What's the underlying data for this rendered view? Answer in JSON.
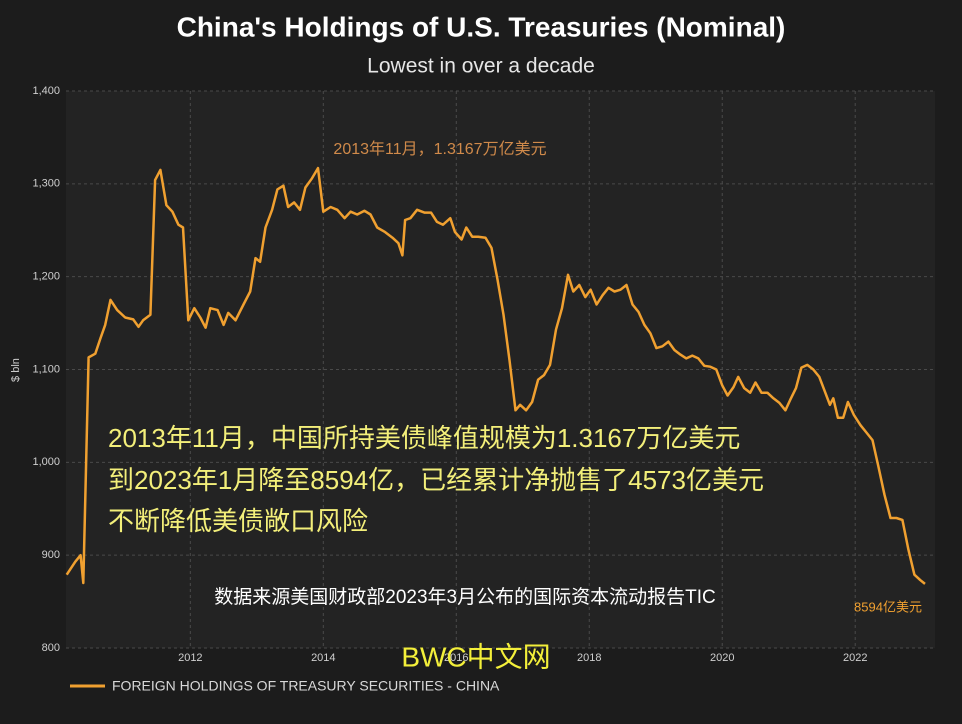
{
  "chart_data": {
    "type": "line",
    "title": "China's Holdings of U.S. Treasuries (Nominal)",
    "subtitle": "Lowest in over a decade",
    "y_label": "$ bln",
    "x": [
      2010.14,
      2010.27,
      2010.35,
      2010.39,
      2010.47,
      2010.57,
      2010.65,
      2010.72,
      2010.8,
      2010.9,
      2011.02,
      2011.14,
      2011.22,
      2011.29,
      2011.4,
      2011.47,
      2011.55,
      2011.64,
      2011.73,
      2011.82,
      2011.89,
      2011.97,
      2012.06,
      2012.15,
      2012.23,
      2012.3,
      2012.41,
      2012.5,
      2012.57,
      2012.68,
      2012.8,
      2012.9,
      2012.98,
      2013.05,
      2013.13,
      2013.23,
      2013.31,
      2013.4,
      2013.47,
      2013.56,
      2013.65,
      2013.73,
      2013.83,
      2013.92,
      2014.0,
      2014.11,
      2014.21,
      2014.32,
      2014.41,
      2014.51,
      2014.62,
      2014.71,
      2014.81,
      2014.93,
      2015.04,
      2015.13,
      2015.19,
      2015.23,
      2015.31,
      2015.41,
      2015.52,
      2015.62,
      2015.71,
      2015.8,
      2015.91,
      2015.98,
      2016.08,
      2016.15,
      2016.24,
      2016.33,
      2016.44,
      2016.53,
      2016.62,
      2016.71,
      2016.8,
      2016.89,
      2016.96,
      2017.05,
      2017.14,
      2017.23,
      2017.32,
      2017.41,
      2017.5,
      2017.59,
      2017.68,
      2017.76,
      2017.85,
      2017.94,
      2018.02,
      2018.11,
      2018.2,
      2018.29,
      2018.38,
      2018.47,
      2018.56,
      2018.65,
      2018.74,
      2018.83,
      2018.92,
      2019.01,
      2019.1,
      2019.19,
      2019.28,
      2019.37,
      2019.46,
      2019.55,
      2019.64,
      2019.73,
      2019.82,
      2019.91,
      2020.0,
      2020.08,
      2020.17,
      2020.24,
      2020.33,
      2020.42,
      2020.5,
      2020.59,
      2020.68,
      2020.77,
      2020.86,
      2020.95,
      2021.02,
      2021.11,
      2021.19,
      2021.28,
      2021.37,
      2021.46,
      2021.55,
      2021.62,
      2021.67,
      2021.74,
      2021.82,
      2021.89,
      2021.98,
      2022.08,
      2022.17,
      2022.26,
      2022.35,
      2022.44,
      2022.53,
      2022.62,
      2022.71,
      2022.8,
      2022.89,
      2022.98,
      2023.05
    ],
    "series": [
      {
        "name": "FOREIGN HOLDINGS OF TREASURY SECURITIES - CHINA",
        "color": "#f0a030",
        "values": [
          879,
          893,
          900,
          870,
          1113,
          1117,
          1134,
          1148,
          1175,
          1164,
          1156,
          1154,
          1146,
          1153,
          1159,
          1304,
          1315,
          1277,
          1270,
          1256,
          1253,
          1153,
          1166,
          1156,
          1145,
          1166,
          1164,
          1148,
          1161,
          1153,
          1170,
          1184,
          1220,
          1216,
          1253,
          1272,
          1294,
          1298,
          1275,
          1280,
          1272,
          1296,
          1306,
          1317,
          1270,
          1275,
          1272,
          1263,
          1270,
          1267,
          1271,
          1267,
          1253,
          1248,
          1242,
          1236,
          1223,
          1261,
          1263,
          1272,
          1269,
          1269,
          1259,
          1256,
          1263,
          1248,
          1240,
          1253,
          1243,
          1243,
          1242,
          1231,
          1197,
          1159,
          1110,
          1056,
          1062,
          1056,
          1065,
          1089,
          1094,
          1105,
          1143,
          1166,
          1202,
          1184,
          1191,
          1178,
          1186,
          1170,
          1180,
          1188,
          1184,
          1186,
          1191,
          1170,
          1162,
          1148,
          1139,
          1123,
          1125,
          1130,
          1121,
          1116,
          1112,
          1115,
          1112,
          1104,
          1103,
          1100,
          1083,
          1072,
          1081,
          1092,
          1080,
          1075,
          1086,
          1075,
          1075,
          1069,
          1064,
          1056,
          1067,
          1080,
          1102,
          1105,
          1100,
          1092,
          1075,
          1062,
          1069,
          1048,
          1048,
          1065,
          1051,
          1040,
          1032,
          1024,
          995,
          965,
          940,
          940,
          938,
          906,
          879,
          873,
          869
        ]
      }
    ],
    "xlim": [
      2010.13,
      2023.2
    ],
    "xticks": [
      2012,
      2014,
      2016,
      2018,
      2020,
      2022
    ],
    "ylim": [
      800,
      1400
    ],
    "yticks": [
      800,
      900,
      {
        "value": 1000,
        "label": "1,000"
      },
      {
        "value": 1100,
        "label": "1,100"
      },
      {
        "value": 1200,
        "label": "1,200"
      },
      {
        "value": 1300,
        "label": "1,300"
      },
      {
        "value": 1400,
        "label": "1,400"
      }
    ],
    "grid": true,
    "annotations": [
      "2013年11月，1.3167万亿美元",
      "2013年11月，中国所持美债峰值规模为1.3167万亿美元",
      "到2023年1月降至8594亿，已经累计净抛售了4573亿美元",
      "不断降低美债敞口风险",
      "数据来源美国财政部2023年3月公布的国际资本流动报告TIC",
      "8594亿美元",
      "BWC中文网"
    ]
  }
}
